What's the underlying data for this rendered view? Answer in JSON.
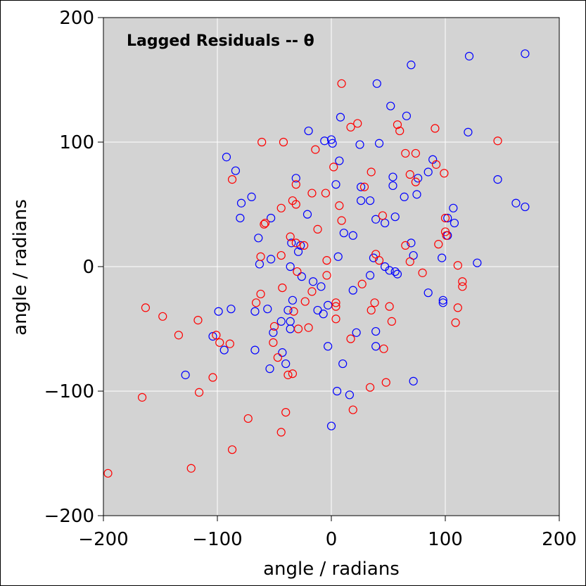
{
  "chart_data": {
    "type": "scatter",
    "title": "Lagged Residuals -- θ",
    "xlabel": "angle / radians",
    "ylabel": "angle / radians",
    "xlim": [
      -200,
      200
    ],
    "ylim": [
      -200,
      200
    ],
    "xticks": [
      -200,
      -100,
      0,
      100,
      200
    ],
    "yticks": [
      -200,
      -100,
      0,
      100,
      200
    ],
    "xtick_labels": [
      "−200",
      "−100",
      "0",
      "100",
      "200"
    ],
    "ytick_labels": [
      "−200",
      "−100",
      "0",
      "100",
      "200"
    ],
    "grid": true,
    "background": "#d3d3d3",
    "marker": "open-circle",
    "series": [
      {
        "color": "#0000ff",
        "points": [
          [
            70,
            162
          ],
          [
            121,
            169
          ],
          [
            170,
            171
          ],
          [
            40,
            147
          ],
          [
            52,
            129
          ],
          [
            8,
            120
          ],
          [
            66,
            121
          ],
          [
            120,
            108
          ],
          [
            -20,
            109
          ],
          [
            -6,
            101
          ],
          [
            0,
            102
          ],
          [
            1,
            99
          ],
          [
            25,
            98
          ],
          [
            42,
            99
          ],
          [
            7,
            85
          ],
          [
            89,
            86
          ],
          [
            -92,
            88
          ],
          [
            -84,
            77
          ],
          [
            85,
            76
          ],
          [
            -31,
            71
          ],
          [
            54,
            72
          ],
          [
            76,
            71
          ],
          [
            146,
            70
          ],
          [
            4,
            66
          ],
          [
            26,
            64
          ],
          [
            54,
            65
          ],
          [
            64,
            56
          ],
          [
            75,
            58
          ],
          [
            -70,
            56
          ],
          [
            -79,
            51
          ],
          [
            26,
            53
          ],
          [
            34,
            53
          ],
          [
            162,
            51
          ],
          [
            170,
            48
          ],
          [
            107,
            47
          ],
          [
            -21,
            42
          ],
          [
            -53,
            39
          ],
          [
            -80,
            39
          ],
          [
            39,
            38
          ],
          [
            47,
            35
          ],
          [
            56,
            40
          ],
          [
            102,
            39
          ],
          [
            108,
            35
          ],
          [
            11,
            27
          ],
          [
            19,
            25
          ],
          [
            102,
            25
          ],
          [
            -35,
            19
          ],
          [
            -27,
            17
          ],
          [
            -29,
            12
          ],
          [
            -64,
            23
          ],
          [
            70,
            19
          ],
          [
            6,
            8
          ],
          [
            37,
            7
          ],
          [
            72,
            9
          ],
          [
            97,
            7
          ],
          [
            -53,
            6
          ],
          [
            -63,
            2
          ],
          [
            -36,
            0
          ],
          [
            47,
            0
          ],
          [
            51,
            -3
          ],
          [
            56,
            -4
          ],
          [
            58,
            -6
          ],
          [
            34,
            -7
          ],
          [
            -26,
            -8
          ],
          [
            128,
            3
          ],
          [
            -16,
            -12
          ],
          [
            -9,
            -16
          ],
          [
            19,
            -19
          ],
          [
            85,
            -21
          ],
          [
            98,
            -27
          ],
          [
            98,
            -29
          ],
          [
            -34,
            -27
          ],
          [
            -38,
            -35
          ],
          [
            -56,
            -34
          ],
          [
            -12,
            -35
          ],
          [
            -3,
            -31
          ],
          [
            -7,
            -38
          ],
          [
            -67,
            -36
          ],
          [
            -99,
            -36
          ],
          [
            -44,
            -44
          ],
          [
            -36,
            -44
          ],
          [
            -51,
            -53
          ],
          [
            -36,
            -50
          ],
          [
            -104,
            -56
          ],
          [
            -94,
            -67
          ],
          [
            -67,
            -67
          ],
          [
            -43,
            -69
          ],
          [
            22,
            -53
          ],
          [
            39,
            -52
          ],
          [
            39,
            -64
          ],
          [
            -3,
            -64
          ],
          [
            -88,
            -34
          ],
          [
            -40,
            -78
          ],
          [
            -54,
            -82
          ],
          [
            10,
            -78
          ],
          [
            -128,
            -87
          ],
          [
            5,
            -100
          ],
          [
            16,
            -103
          ],
          [
            72,
            -92
          ],
          [
            0,
            -128
          ]
        ]
      },
      {
        "color": "#ff0000",
        "points": [
          [
            9,
            147
          ],
          [
            60,
            109
          ],
          [
            58,
            114
          ],
          [
            23,
            115
          ],
          [
            17,
            112
          ],
          [
            91,
            111
          ],
          [
            146,
            101
          ],
          [
            -61,
            100
          ],
          [
            -42,
            100
          ],
          [
            -14,
            94
          ],
          [
            65,
            91
          ],
          [
            74,
            91
          ],
          [
            92,
            82
          ],
          [
            99,
            75
          ],
          [
            69,
            74
          ],
          [
            74,
            68
          ],
          [
            2,
            80
          ],
          [
            -87,
            70
          ],
          [
            35,
            76
          ],
          [
            -31,
            66
          ],
          [
            29,
            64
          ],
          [
            -17,
            59
          ],
          [
            -5,
            59
          ],
          [
            -34,
            53
          ],
          [
            -31,
            50
          ],
          [
            -44,
            47
          ],
          [
            7,
            49
          ],
          [
            45,
            41
          ],
          [
            100,
            39
          ],
          [
            -58,
            35
          ],
          [
            -59,
            34
          ],
          [
            9,
            37
          ],
          [
            -12,
            30
          ],
          [
            100,
            28
          ],
          [
            101,
            25
          ],
          [
            -36,
            24
          ],
          [
            -31,
            19
          ],
          [
            -24,
            17
          ],
          [
            65,
            17
          ],
          [
            94,
            18
          ],
          [
            -62,
            8
          ],
          [
            -44,
            9
          ],
          [
            39,
            10
          ],
          [
            42,
            5
          ],
          [
            69,
            4
          ],
          [
            111,
            1
          ],
          [
            -4,
            5
          ],
          [
            -30,
            -4
          ],
          [
            -4,
            -7
          ],
          [
            80,
            -5
          ],
          [
            27,
            -14
          ],
          [
            -43,
            -17
          ],
          [
            -17,
            -20
          ],
          [
            -62,
            -22
          ],
          [
            115,
            -12
          ],
          [
            115,
            -16
          ],
          [
            -23,
            -28
          ],
          [
            4,
            -29
          ],
          [
            4,
            -32
          ],
          [
            -66,
            -29
          ],
          [
            -163,
            -33
          ],
          [
            -33,
            -36
          ],
          [
            35,
            -35
          ],
          [
            38,
            -29
          ],
          [
            51,
            -32
          ],
          [
            111,
            -33
          ],
          [
            -148,
            -40
          ],
          [
            -117,
            -43
          ],
          [
            -50,
            -48
          ],
          [
            -29,
            -50
          ],
          [
            -20,
            -49
          ],
          [
            4,
            -42
          ],
          [
            53,
            -44
          ],
          [
            109,
            -45
          ],
          [
            -101,
            -55
          ],
          [
            -134,
            -55
          ],
          [
            -51,
            -61
          ],
          [
            -98,
            -61
          ],
          [
            -89,
            -62
          ],
          [
            -47,
            -73
          ],
          [
            17,
            -58
          ],
          [
            46,
            -66
          ],
          [
            -34,
            -86
          ],
          [
            -38,
            -87
          ],
          [
            -104,
            -89
          ],
          [
            34,
            -97
          ],
          [
            48,
            -93
          ],
          [
            -116,
            -101
          ],
          [
            -166,
            -105
          ],
          [
            19,
            -115
          ],
          [
            -40,
            -117
          ],
          [
            -73,
            -122
          ],
          [
            -44,
            -133
          ],
          [
            -87,
            -147
          ],
          [
            -123,
            -162
          ],
          [
            -196,
            -166
          ]
        ]
      }
    ]
  }
}
